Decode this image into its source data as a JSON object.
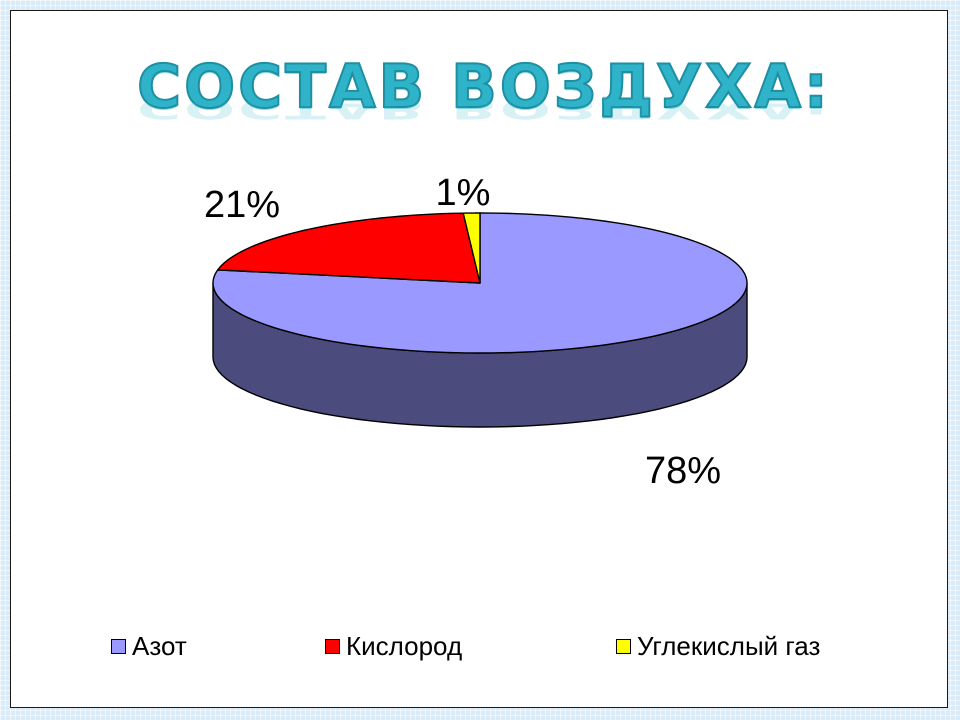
{
  "slide": {
    "title": "СОСТАВ ВОЗДУХА:"
  },
  "chart_data": {
    "type": "pie",
    "title": "СОСТАВ ВОЗДУХА:",
    "categories": [
      "Азот",
      "Кислород",
      "Углекислый газ"
    ],
    "values": [
      78,
      21,
      1
    ],
    "data_labels": [
      "78%",
      "21%",
      "1%"
    ],
    "colors": [
      "#9999ff",
      "#ff0000",
      "#ffff00"
    ],
    "side_colors": [
      "#4b4b7d",
      "#800000",
      "#7f7f00"
    ],
    "legend_position": "bottom",
    "three_d": true
  },
  "legend": {
    "items": [
      {
        "label": "Азот",
        "color": "#9999ff"
      },
      {
        "label": "Кислород",
        "color": "#ff0000"
      },
      {
        "label": "Углекислый газ",
        "color": "#ffff00"
      }
    ]
  }
}
